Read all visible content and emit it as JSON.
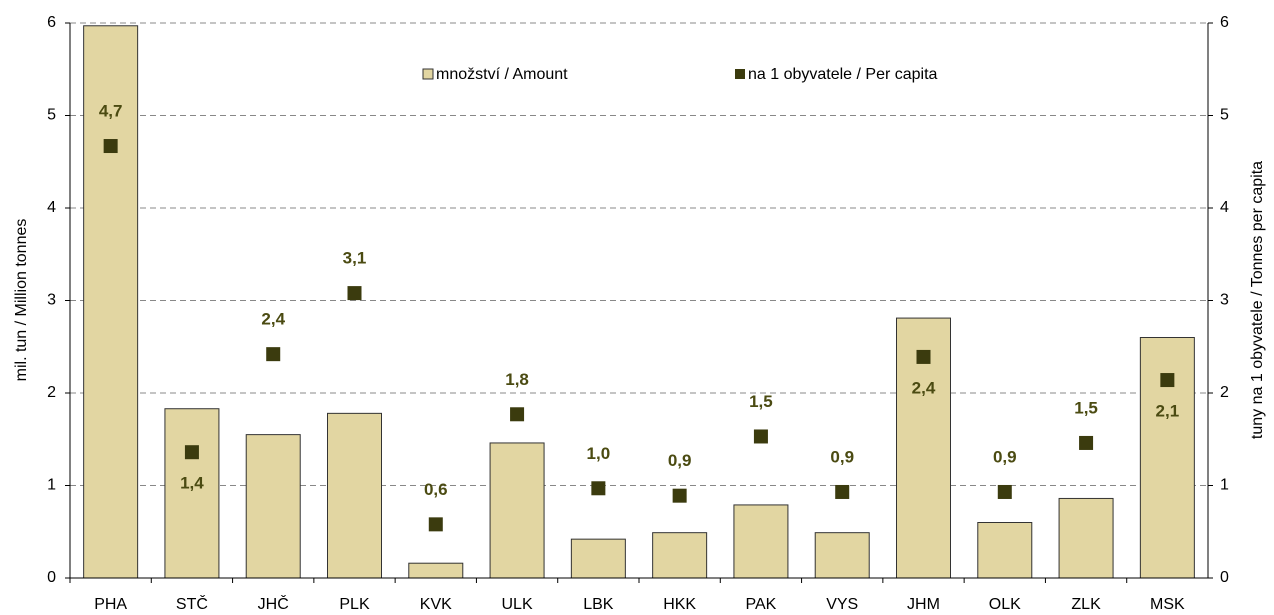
{
  "chart_data": {
    "type": "bar_scatter",
    "categories": [
      "PHA",
      "STČ",
      "JHČ",
      "PLK",
      "KVK",
      "ULK",
      "LBK",
      "HKK",
      "PAK",
      "VYS",
      "JHM",
      "OLK",
      "ZLK",
      "MSK"
    ],
    "series": [
      {
        "name": "množství / Amount",
        "color": "#e2d6a2",
        "values": [
          5.97,
          1.83,
          1.55,
          1.78,
          0.16,
          1.46,
          0.42,
          0.49,
          0.79,
          0.49,
          2.81,
          0.6,
          0.86,
          2.6
        ]
      },
      {
        "name": "na 1 obyvatele / Per capita",
        "color": "#3b3b0e",
        "axis": "y2",
        "values": [
          4.67,
          1.36,
          2.42,
          3.08,
          0.58,
          1.77,
          0.97,
          0.89,
          1.53,
          0.93,
          2.39,
          0.93,
          1.46,
          2.14
        ],
        "value_labels": [
          "4,7",
          "1,4",
          "2,4",
          "3,1",
          "0,6",
          "1,8",
          "1,0",
          "0,9",
          "1,5",
          "0,9",
          "2,4",
          "0,9",
          "1,5",
          "2,1"
        ]
      }
    ],
    "ylabel": "mil. tun / Million tonnes",
    "y2label": "tuny na 1 obyvatele / Tonnes per capita",
    "ylim": [
      0,
      6
    ],
    "yticks": [
      0,
      1,
      2,
      3,
      4,
      5,
      6
    ],
    "y2lim": [
      0,
      6
    ],
    "y2ticks": [
      0,
      1,
      2,
      3,
      4,
      5,
      6
    ],
    "grid": true
  }
}
